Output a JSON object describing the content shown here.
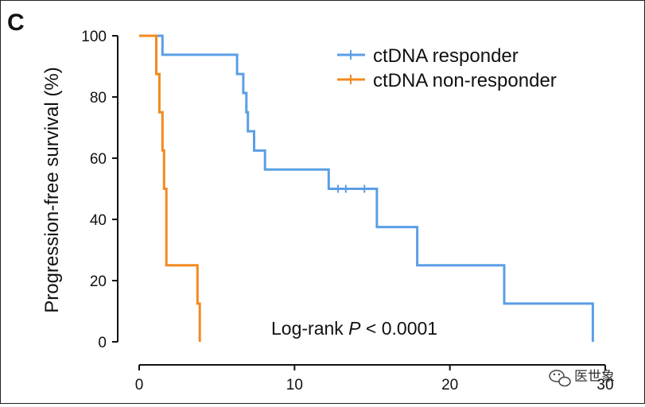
{
  "panel_label": "C",
  "watermark": {
    "text": "医世象",
    "icon": "wechat-bubble-icon"
  },
  "chart_data": {
    "type": "line",
    "subtype": "kaplan-meier",
    "title": "",
    "xlabel": "",
    "ylabel": "Progression-free survival (%)",
    "xlim": [
      0,
      30
    ],
    "ylim": [
      0,
      100
    ],
    "xticks": [
      0,
      10,
      20,
      30
    ],
    "yticks": [
      0,
      20,
      40,
      60,
      80,
      100
    ],
    "grid": false,
    "legend_position": "top-right",
    "annotation_parts": [
      "Log-rank ",
      "P",
      " < 0.0001"
    ],
    "series": [
      {
        "name": "ctDNA responder",
        "color": "#5b9ee6",
        "x": [
          0,
          1.5,
          1.5,
          6.3,
          6.3,
          6.7,
          6.7,
          6.9,
          6.9,
          7.0,
          7.0,
          7.4,
          7.4,
          8.1,
          8.1,
          12.2,
          12.2,
          15.3,
          15.3,
          17.9,
          17.9,
          23.5,
          23.5,
          29.2,
          29.2
        ],
        "y": [
          100,
          100,
          93.8,
          93.8,
          87.5,
          87.5,
          81.3,
          81.3,
          75,
          75,
          68.8,
          68.8,
          62.5,
          62.5,
          56.3,
          56.3,
          50,
          50,
          37.5,
          37.5,
          25,
          25,
          12.5,
          12.5,
          0
        ],
        "censor_x": [
          12.8,
          13.3,
          14.5
        ],
        "censor_y": [
          50,
          50,
          50
        ]
      },
      {
        "name": "ctDNA non-responder",
        "color": "#f28a1f",
        "x": [
          0,
          1.1,
          1.1,
          1.3,
          1.3,
          1.5,
          1.5,
          1.6,
          1.6,
          1.75,
          1.75,
          3.75,
          3.75,
          3.9,
          3.9
        ],
        "y": [
          100,
          100,
          87.5,
          87.5,
          75,
          75,
          62.5,
          62.5,
          50,
          50,
          25,
          25,
          12.5,
          12.5,
          0
        ],
        "censor_x": [],
        "censor_y": []
      }
    ]
  }
}
